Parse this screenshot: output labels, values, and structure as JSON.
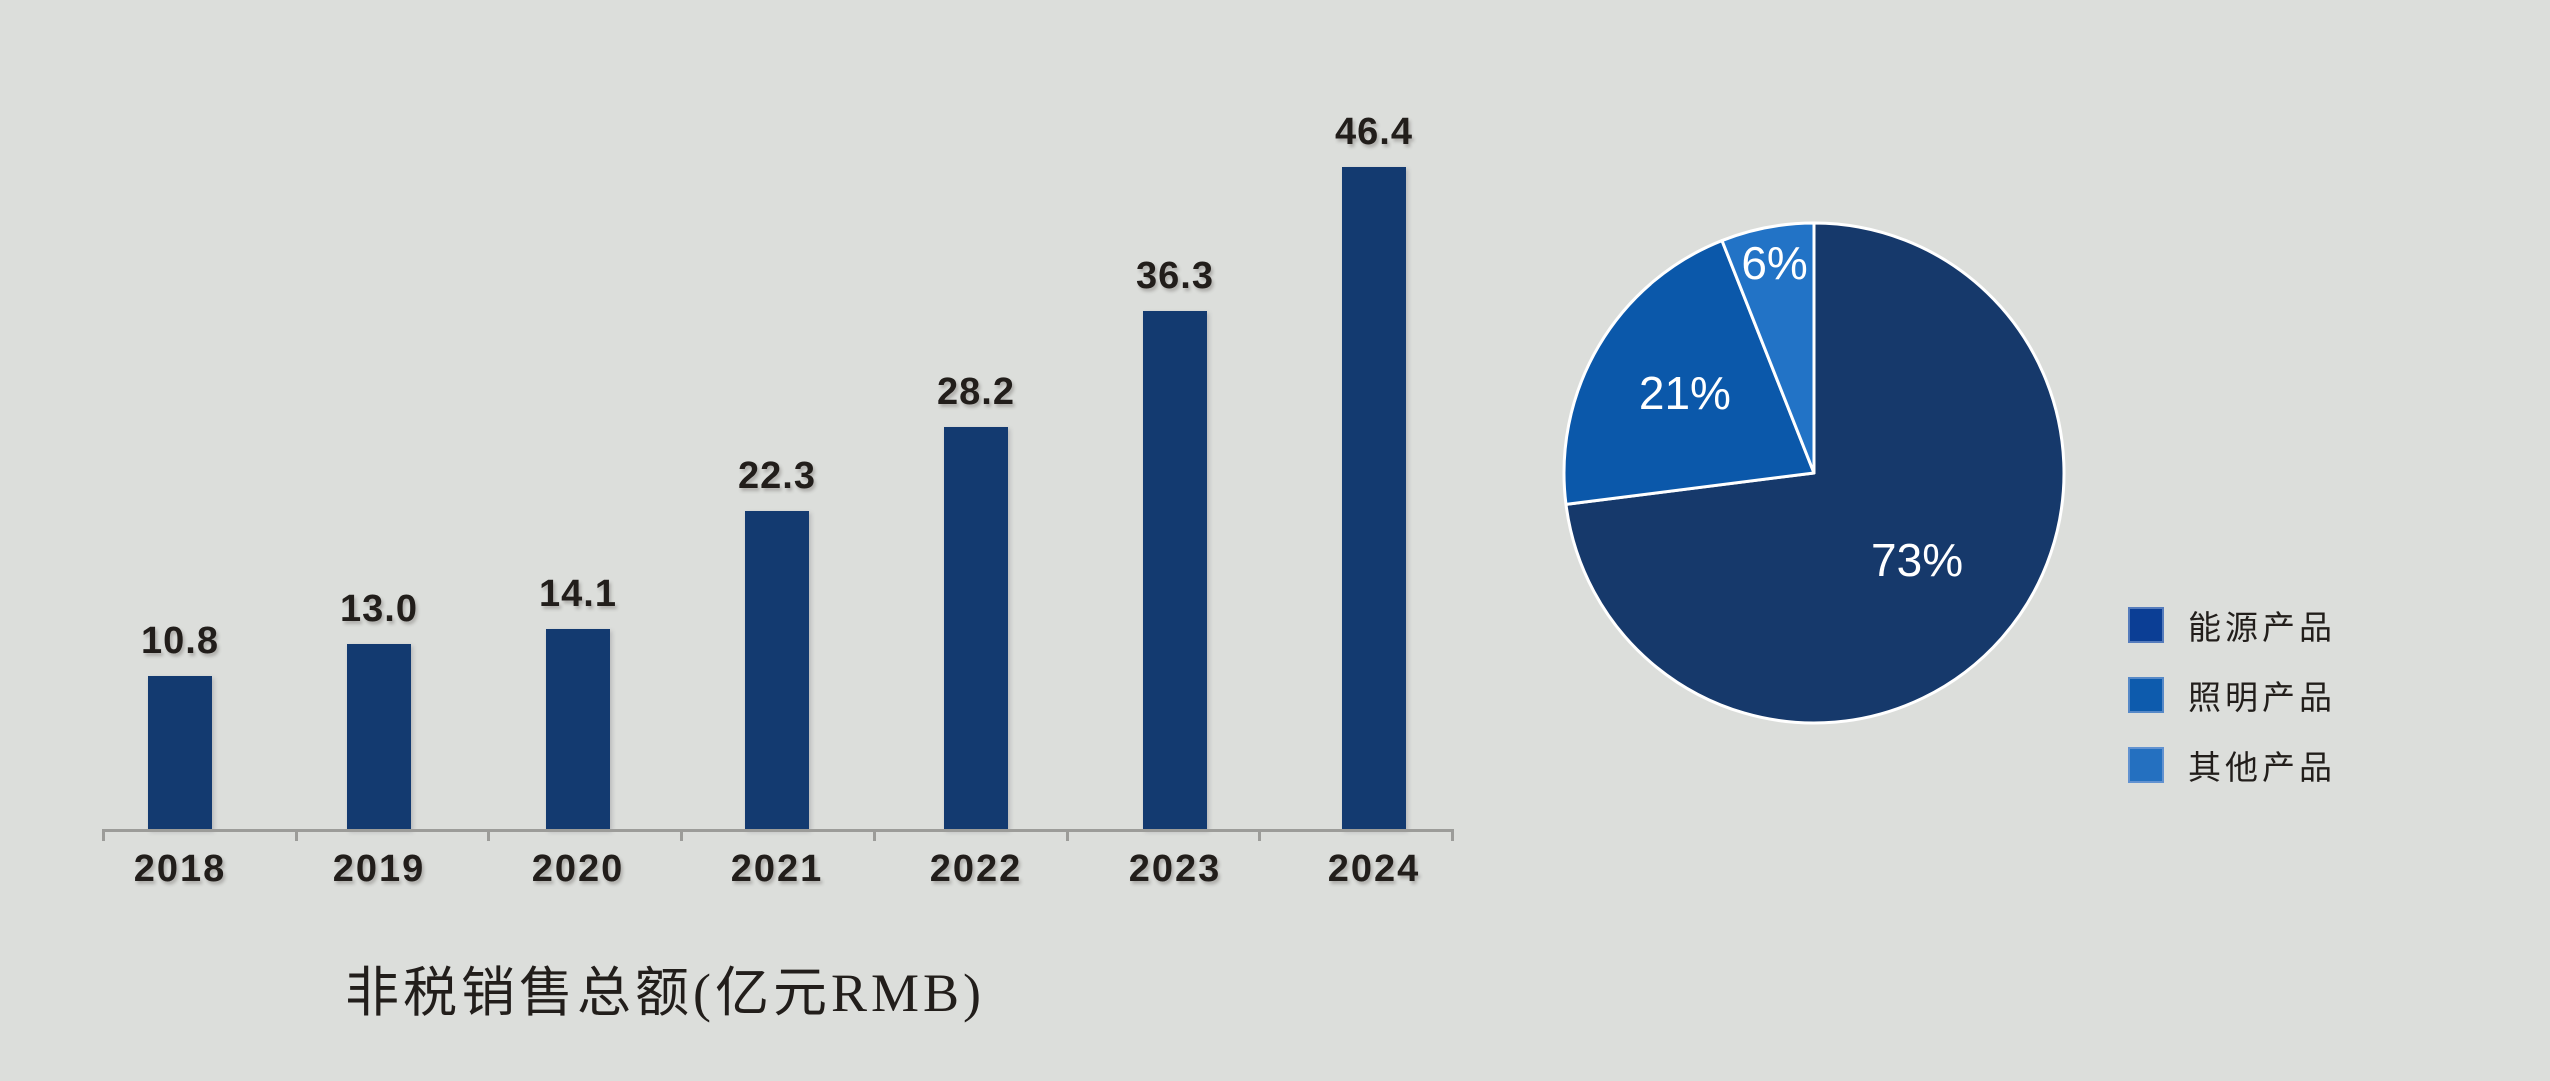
{
  "colors": {
    "background": "#DCDEDB",
    "bar": "#133A70",
    "axis": "#9C9C99",
    "dark_text": "#221E1B",
    "pie_label_text": "#FFFFFF",
    "pie_stroke": "#FFFFFF"
  },
  "chart_data": [
    {
      "type": "bar",
      "title": "非税销售总额(亿元RMB)",
      "categories": [
        "2018",
        "2019",
        "2020",
        "2021",
        "2022",
        "2023",
        "2024"
      ],
      "values": [
        10.8,
        13.0,
        14.1,
        22.3,
        28.2,
        36.3,
        46.4
      ],
      "values_display": [
        "10.8",
        "13.0",
        "14.1",
        "22.3",
        "28.2",
        "36.3",
        "46.4"
      ],
      "bar_color": "#133A70",
      "ylim": [
        0,
        50
      ],
      "grid": false,
      "xlabel": "",
      "ylabel": "",
      "legend_position": "none",
      "data_labels": "above bars",
      "axis_color": "#9C9C99"
    },
    {
      "type": "pie",
      "start_angle": "12 o'clock",
      "direction": "clockwise",
      "slices": [
        {
          "label": "能源产品",
          "value": 73,
          "display": "73%",
          "color": "#16396B"
        },
        {
          "label": "照明产品",
          "value": 21,
          "display": "21%",
          "color": "#0B58AA"
        },
        {
          "label": "其他产品",
          "value": 6,
          "display": "6%",
          "color": "#2273C6"
        }
      ],
      "stroke_color": "#FFFFFF",
      "legend_position": "right",
      "legend": [
        {
          "label": "能源产品",
          "color": "#0B3E95"
        },
        {
          "label": "照明产品",
          "color": "#0D5BAD"
        },
        {
          "label": "其他产品",
          "color": "#2470C0"
        }
      ]
    }
  ]
}
